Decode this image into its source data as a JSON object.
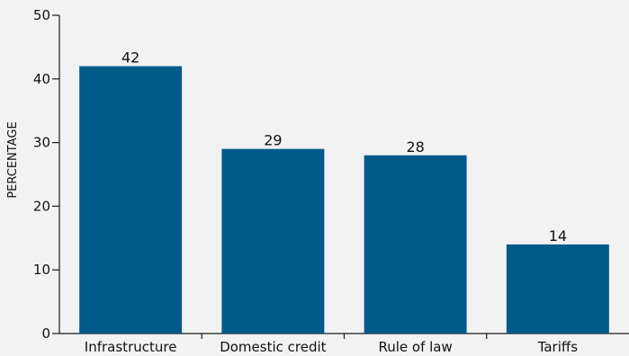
{
  "chart_data": {
    "type": "bar",
    "categories": [
      "Infrastructure",
      "Domestic credit",
      "Rule of law",
      "Tariffs"
    ],
    "values": [
      42,
      29,
      28,
      14
    ],
    "data_labels": [
      "42",
      "29",
      "28",
      "14"
    ],
    "ylabel": "PERCENTAGE",
    "xlabel": "",
    "ylim": [
      0,
      50
    ],
    "yticks": [
      0,
      10,
      20,
      30,
      40,
      50
    ],
    "grid": false,
    "bar_color": "#005a8c",
    "background_color": "#f2f2f2"
  }
}
